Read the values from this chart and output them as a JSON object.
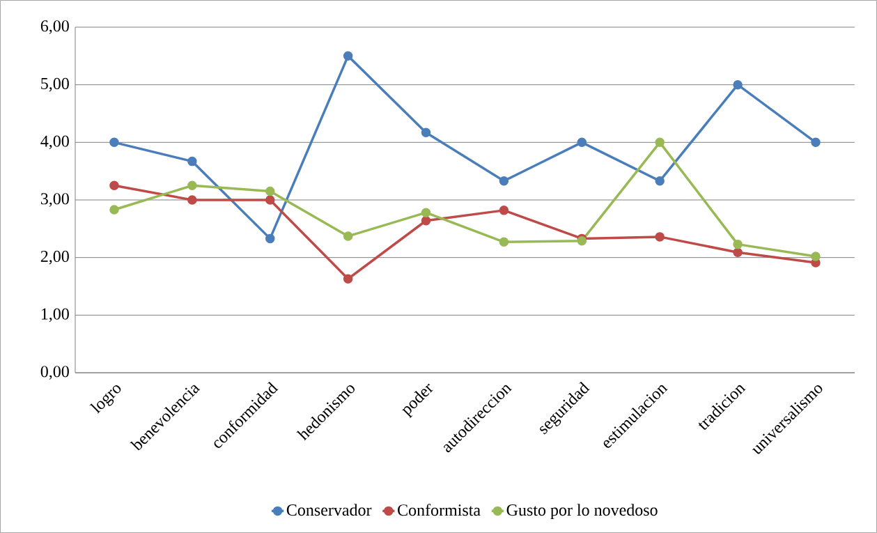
{
  "chart_data": {
    "type": "line",
    "categories": [
      "logro",
      "benevolencia",
      "conformidad",
      "hedonismo",
      "poder",
      "autodireccion",
      "seguridad",
      "estimulacion",
      "tradicion",
      "universalismo"
    ],
    "series": [
      {
        "name": "Conservador",
        "color": "#4a7ebb",
        "values": [
          4.0,
          3.67,
          2.33,
          5.5,
          4.17,
          3.33,
          4.0,
          3.33,
          5.0,
          4.0
        ]
      },
      {
        "name": "Conformista",
        "color": "#be4b48",
        "values": [
          3.25,
          3.0,
          3.0,
          1.63,
          2.64,
          2.82,
          2.33,
          2.36,
          2.09,
          1.91
        ]
      },
      {
        "name": "Gusto por lo novedoso",
        "color": "#98b954",
        "values": [
          2.83,
          3.25,
          3.15,
          2.37,
          2.78,
          2.27,
          2.29,
          4.0,
          2.23,
          2.02
        ]
      }
    ],
    "ylim": [
      0,
      6
    ],
    "yticks": [
      {
        "value": 0,
        "label": "0,00"
      },
      {
        "value": 1,
        "label": "1,00"
      },
      {
        "value": 2,
        "label": "2,00"
      },
      {
        "value": 3,
        "label": "3,00"
      },
      {
        "value": 4,
        "label": "4,00"
      },
      {
        "value": 5,
        "label": "5,00"
      },
      {
        "value": 6,
        "label": "6,00"
      }
    ],
    "grid": "y",
    "legend": "bottom",
    "marker": "circle",
    "line_style": "solid"
  }
}
